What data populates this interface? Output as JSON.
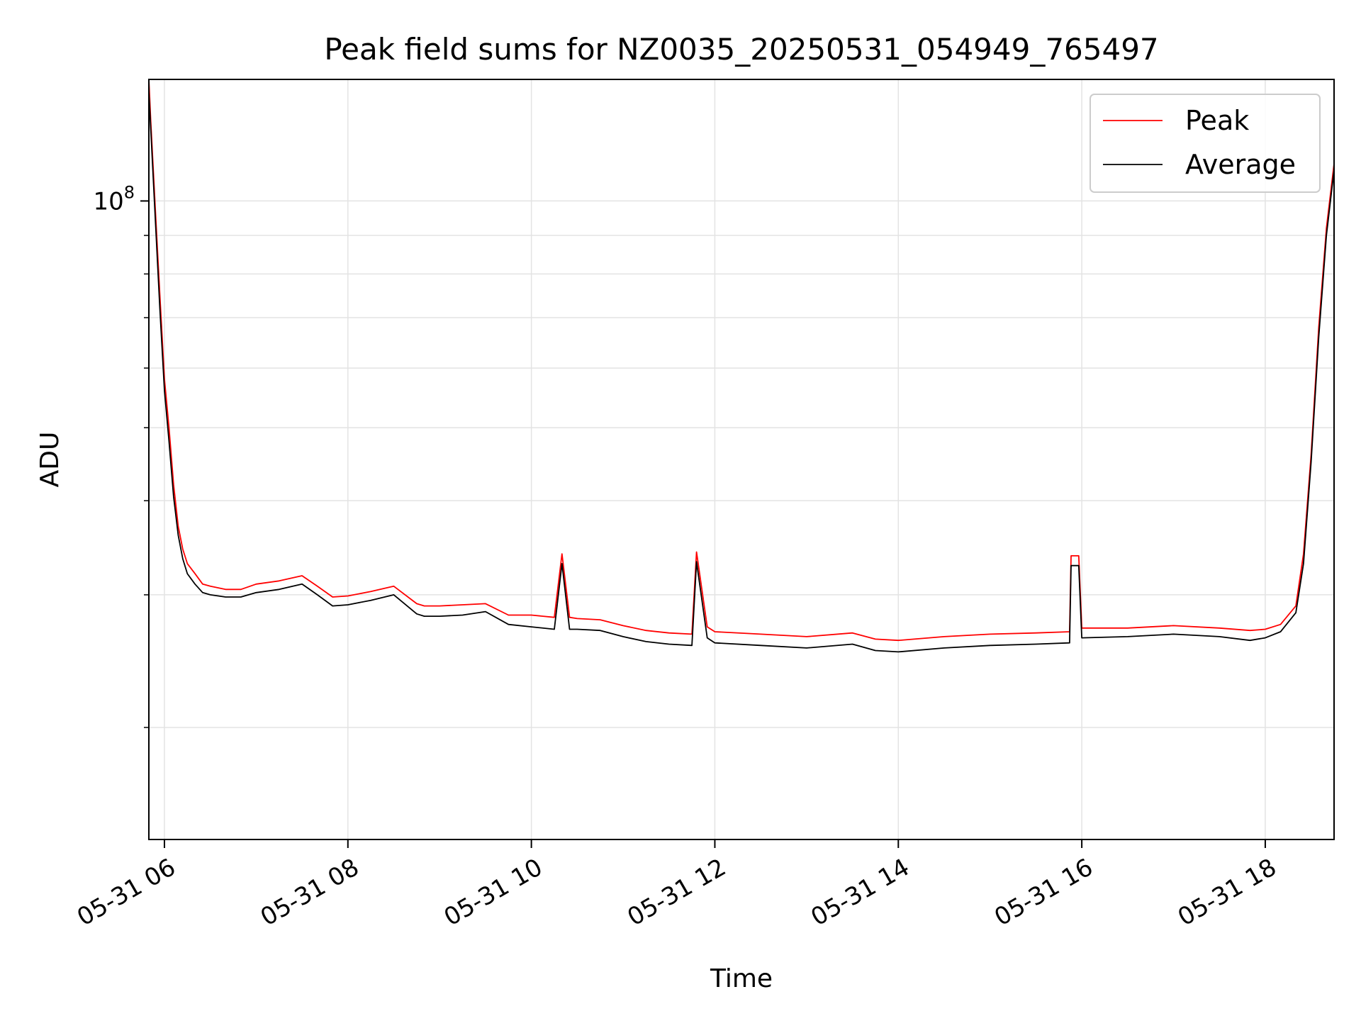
{
  "chart_data": {
    "type": "line",
    "title": "Peak field sums for NZ0035_20250531_054949_765497",
    "xlabel": "Time",
    "ylabel": "ADU",
    "y_scale": "log",
    "xlim": [
      "2025-05-31T05:49:49",
      "2025-05-31T18:45:00"
    ],
    "ylim": [
      14200000,
      145000000
    ],
    "x_ticks": [
      {
        "value": "2025-05-31T06:00:00",
        "label": "05-31 06"
      },
      {
        "value": "2025-05-31T08:00:00",
        "label": "05-31 08"
      },
      {
        "value": "2025-05-31T10:00:00",
        "label": "05-31 10"
      },
      {
        "value": "2025-05-31T12:00:00",
        "label": "05-31 12"
      },
      {
        "value": "2025-05-31T14:00:00",
        "label": "05-31 14"
      },
      {
        "value": "2025-05-31T16:00:00",
        "label": "05-31 16"
      },
      {
        "value": "2025-05-31T18:00:00",
        "label": "05-31 18"
      }
    ],
    "y_major_ticks": [
      {
        "value": 100000000,
        "base": "10",
        "exp": "8"
      }
    ],
    "y_minor_ticks": [
      20000000,
      30000000,
      40000000,
      50000000,
      60000000,
      70000000,
      80000000,
      90000000
    ],
    "grid": true,
    "legend_position": "upper right",
    "series": [
      {
        "name": "Peak",
        "color": "#ff0000",
        "x": [
          "2025-05-31T05:49:49",
          "2025-05-31T05:51:00",
          "2025-05-31T05:54:00",
          "2025-05-31T05:57:00",
          "2025-05-31T06:00:00",
          "2025-05-31T06:03:00",
          "2025-05-31T06:06:00",
          "2025-05-31T06:09:00",
          "2025-05-31T06:12:00",
          "2025-05-31T06:15:00",
          "2025-05-31T06:20:00",
          "2025-05-31T06:25:00",
          "2025-05-31T06:30:00",
          "2025-05-31T06:40:00",
          "2025-05-31T06:50:00",
          "2025-05-31T07:00:00",
          "2025-05-31T07:15:00",
          "2025-05-31T07:30:00",
          "2025-05-31T07:40:00",
          "2025-05-31T07:50:00",
          "2025-05-31T08:00:00",
          "2025-05-31T08:15:00",
          "2025-05-31T08:30:00",
          "2025-05-31T08:45:00",
          "2025-05-31T08:50:00",
          "2025-05-31T09:00:00",
          "2025-05-31T09:15:00",
          "2025-05-31T09:30:00",
          "2025-05-31T09:45:00",
          "2025-05-31T10:00:00",
          "2025-05-31T10:15:00",
          "2025-05-31T10:20:00",
          "2025-05-31T10:25:00",
          "2025-05-31T10:30:00",
          "2025-05-31T10:45:00",
          "2025-05-31T11:00:00",
          "2025-05-31T11:15:00",
          "2025-05-31T11:30:00",
          "2025-05-31T11:45:00",
          "2025-05-31T11:48:00",
          "2025-05-31T11:55:00",
          "2025-05-31T12:00:00",
          "2025-05-31T12:30:00",
          "2025-05-31T13:00:00",
          "2025-05-31T13:30:00",
          "2025-05-31T13:45:00",
          "2025-05-31T14:00:00",
          "2025-05-31T14:30:00",
          "2025-05-31T15:00:00",
          "2025-05-31T15:30:00",
          "2025-05-31T15:52:00",
          "2025-05-31T15:53:00",
          "2025-05-31T15:58:00",
          "2025-05-31T16:00:00",
          "2025-05-31T16:30:00",
          "2025-05-31T17:00:00",
          "2025-05-31T17:30:00",
          "2025-05-31T17:50:00",
          "2025-05-31T18:00:00",
          "2025-05-31T18:10:00",
          "2025-05-31T18:20:00",
          "2025-05-31T18:25:00",
          "2025-05-31T18:30:00",
          "2025-05-31T18:35:00",
          "2025-05-31T18:40:00",
          "2025-05-31T18:45:00"
        ],
        "y": [
          145000000,
          128000000,
          98000000,
          75000000,
          58000000,
          50000000,
          42000000,
          37000000,
          34500000,
          33000000,
          32000000,
          31000000,
          30800000,
          30500000,
          30500000,
          31000000,
          31300000,
          31800000,
          30800000,
          29800000,
          29900000,
          30300000,
          30800000,
          29200000,
          29000000,
          29000000,
          29100000,
          29200000,
          28200000,
          28200000,
          28000000,
          34000000,
          28000000,
          27900000,
          27800000,
          27300000,
          26900000,
          26700000,
          26600000,
          34200000,
          27200000,
          26800000,
          26600000,
          26400000,
          26700000,
          26200000,
          26100000,
          26400000,
          26600000,
          26700000,
          26800000,
          33800000,
          33800000,
          27100000,
          27100000,
          27300000,
          27100000,
          26900000,
          27000000,
          27400000,
          29000000,
          34000000,
          46000000,
          68000000,
          92000000,
          112000000
        ]
      },
      {
        "name": "Average",
        "color": "#000000",
        "x": [
          "2025-05-31T05:49:49",
          "2025-05-31T05:51:00",
          "2025-05-31T05:54:00",
          "2025-05-31T05:57:00",
          "2025-05-31T06:00:00",
          "2025-05-31T06:03:00",
          "2025-05-31T06:06:00",
          "2025-05-31T06:09:00",
          "2025-05-31T06:12:00",
          "2025-05-31T06:15:00",
          "2025-05-31T06:20:00",
          "2025-05-31T06:25:00",
          "2025-05-31T06:30:00",
          "2025-05-31T06:40:00",
          "2025-05-31T06:50:00",
          "2025-05-31T07:00:00",
          "2025-05-31T07:15:00",
          "2025-05-31T07:30:00",
          "2025-05-31T07:40:00",
          "2025-05-31T07:50:00",
          "2025-05-31T08:00:00",
          "2025-05-31T08:15:00",
          "2025-05-31T08:30:00",
          "2025-05-31T08:45:00",
          "2025-05-31T08:50:00",
          "2025-05-31T09:00:00",
          "2025-05-31T09:15:00",
          "2025-05-31T09:30:00",
          "2025-05-31T09:45:00",
          "2025-05-31T10:00:00",
          "2025-05-31T10:15:00",
          "2025-05-31T10:20:00",
          "2025-05-31T10:25:00",
          "2025-05-31T10:30:00",
          "2025-05-31T10:45:00",
          "2025-05-31T11:00:00",
          "2025-05-31T11:15:00",
          "2025-05-31T11:30:00",
          "2025-05-31T11:45:00",
          "2025-05-31T11:48:00",
          "2025-05-31T11:55:00",
          "2025-05-31T12:00:00",
          "2025-05-31T12:30:00",
          "2025-05-31T13:00:00",
          "2025-05-31T13:30:00",
          "2025-05-31T13:45:00",
          "2025-05-31T14:00:00",
          "2025-05-31T14:30:00",
          "2025-05-31T15:00:00",
          "2025-05-31T15:30:00",
          "2025-05-31T15:52:00",
          "2025-05-31T15:53:00",
          "2025-05-31T15:58:00",
          "2025-05-31T16:00:00",
          "2025-05-31T16:30:00",
          "2025-05-31T17:00:00",
          "2025-05-31T17:30:00",
          "2025-05-31T17:50:00",
          "2025-05-31T18:00:00",
          "2025-05-31T18:10:00",
          "2025-05-31T18:20:00",
          "2025-05-31T18:25:00",
          "2025-05-31T18:30:00",
          "2025-05-31T18:35:00",
          "2025-05-31T18:40:00",
          "2025-05-31T18:45:00"
        ],
        "y": [
          140000000,
          125000000,
          95000000,
          72000000,
          56000000,
          48000000,
          40500000,
          36000000,
          33500000,
          32000000,
          31000000,
          30200000,
          30000000,
          29800000,
          29800000,
          30200000,
          30500000,
          31000000,
          30000000,
          29000000,
          29100000,
          29500000,
          30000000,
          28300000,
          28100000,
          28100000,
          28200000,
          28500000,
          27400000,
          27200000,
          27000000,
          33000000,
          27000000,
          27000000,
          26900000,
          26400000,
          26000000,
          25800000,
          25700000,
          33200000,
          26300000,
          25900000,
          25700000,
          25500000,
          25800000,
          25300000,
          25200000,
          25500000,
          25700000,
          25800000,
          25900000,
          32800000,
          32800000,
          26300000,
          26400000,
          26600000,
          26400000,
          26100000,
          26300000,
          26800000,
          28400000,
          33000000,
          45000000,
          66000000,
          90000000,
          110000000
        ]
      }
    ]
  }
}
